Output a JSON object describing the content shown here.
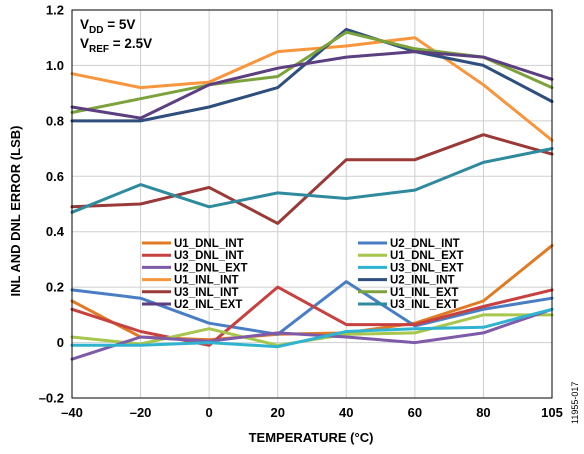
{
  "chart_data": {
    "type": "line",
    "title": "",
    "xlabel": "TEMPERATURE (°C)",
    "ylabel": "INL AND DNL ERROR (LSB)",
    "x": [
      -40,
      -20,
      0,
      20,
      40,
      60,
      80,
      105
    ],
    "xtick_labels": [
      "–40",
      "–20",
      "0",
      "20",
      "40",
      "60",
      "80",
      "105"
    ],
    "ylim": [
      -0.2,
      1.2
    ],
    "yticks": [
      -0.2,
      0,
      0.2,
      0.4,
      0.6,
      0.8,
      1.0,
      1.2
    ],
    "ytick_labels": [
      "–0.2",
      "0",
      "0.2",
      "0.4",
      "0.6",
      "0.8",
      "1.0",
      "1.2"
    ],
    "grid": true,
    "legend_placement": "center",
    "annotations": {
      "vdd_main": "V",
      "vdd_sub": "DD",
      "vdd_rest": " = 5V",
      "vref_main": "V",
      "vref_sub": "REF",
      "vref_rest": " = 2.5V"
    },
    "figure_id": "11955-017",
    "series": [
      {
        "name": "U1_DNL_INT",
        "color": "#e07b25",
        "values": [
          0.15,
          0.02,
          0.01,
          0.03,
          0.035,
          0.07,
          0.15,
          0.35
        ]
      },
      {
        "name": "U2_DNL_INT",
        "color": "#4a7ec4",
        "values": [
          0.19,
          0.16,
          0.07,
          0.03,
          0.22,
          0.06,
          0.12,
          0.16
        ]
      },
      {
        "name": "U3_DNL_INT",
        "color": "#c6413f",
        "values": [
          0.12,
          0.04,
          -0.01,
          0.2,
          0.065,
          0.065,
          0.13,
          0.19
        ]
      },
      {
        "name": "U1_DNL_EXT",
        "color": "#a6c64c",
        "values": [
          0.02,
          -0.005,
          0.05,
          -0.01,
          0.03,
          0.035,
          0.1,
          0.1
        ]
      },
      {
        "name": "U2_DNL_EXT",
        "color": "#7e5aa8",
        "values": [
          -0.06,
          0.02,
          0.005,
          0.035,
          0.02,
          0.0,
          0.035,
          0.12
        ]
      },
      {
        "name": "U3_DNL_EXT",
        "color": "#2fb3d0",
        "values": [
          -0.01,
          -0.01,
          0.0,
          -0.015,
          0.04,
          0.05,
          0.055,
          0.12
        ]
      },
      {
        "name": "U1_INL_INT",
        "color": "#f7963d",
        "values": [
          0.97,
          0.92,
          0.94,
          1.05,
          1.07,
          1.1,
          0.93,
          0.73
        ]
      },
      {
        "name": "U2_INL_INT",
        "color": "#2e4e7e",
        "values": [
          0.8,
          0.8,
          0.85,
          0.92,
          1.13,
          1.05,
          1.0,
          0.87
        ]
      },
      {
        "name": "U3_INL_INT",
        "color": "#9a3a38",
        "values": [
          0.49,
          0.5,
          0.56,
          0.43,
          0.66,
          0.66,
          0.75,
          0.68
        ]
      },
      {
        "name": "U1_INL_EXT",
        "color": "#7ca23b",
        "values": [
          0.83,
          0.88,
          0.93,
          0.96,
          1.12,
          1.06,
          1.03,
          0.92
        ]
      },
      {
        "name": "U2_INL_EXT",
        "color": "#5c3f80",
        "values": [
          0.85,
          0.81,
          0.93,
          0.99,
          1.03,
          1.05,
          1.03,
          0.95
        ]
      },
      {
        "name": "U3_INL_EXT",
        "color": "#2f8a9e",
        "values": [
          0.47,
          0.57,
          0.49,
          0.54,
          0.52,
          0.55,
          0.65,
          0.7
        ]
      }
    ],
    "legend_order": [
      [
        "U1_DNL_INT",
        "U2_DNL_INT"
      ],
      [
        "U3_DNL_INT",
        "U1_DNL_EXT"
      ],
      [
        "U2_DNL_EXT",
        "U3_DNL_EXT"
      ],
      [
        "U1_INL_INT",
        "U2_INL_INT"
      ],
      [
        "U3_INL_INT",
        "U1_INL_EXT"
      ],
      [
        "U2_INL_EXT",
        "U3_INL_EXT"
      ]
    ]
  }
}
